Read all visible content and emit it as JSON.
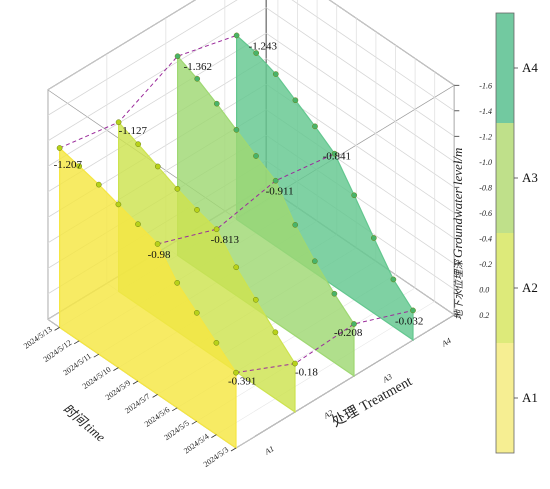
{
  "chart_data": {
    "type": "area",
    "x_axis_label_cn": "时间",
    "x_axis_label_en": "time",
    "y_axis_label_cn": "处理",
    "y_axis_label_en": "Treatment",
    "z_axis_label_cn": "地下水位埋深",
    "z_axis_label_en": "Groundwater level/m",
    "dates": [
      "2024/5/3",
      "2024/5/4",
      "2024/5/5",
      "2024/5/6",
      "2024/5/7",
      "2024/5/9",
      "2024/5/10",
      "2024/5/11",
      "2024/5/12",
      "2024/5/13"
    ],
    "treatments": [
      "A1",
      "A2",
      "A3",
      "A4"
    ],
    "zlim": [
      0.2,
      -1.6
    ],
    "z_ticks": [
      "0.2",
      "0.0",
      "-0.2",
      "-0.4",
      "-0.6",
      "-0.8",
      "-1.0",
      "-1.2",
      "-1.4",
      "-1.6"
    ],
    "z_tick_values": [
      0.2,
      0.0,
      -0.2,
      -0.4,
      -0.6,
      -0.8,
      -1.0,
      -1.2,
      -1.4,
      -1.6
    ],
    "series": [
      {
        "name": "A1",
        "color": "#f5e642",
        "values": [
          -0.391,
          -0.52,
          -0.65,
          -0.78,
          -0.98,
          -1.03,
          -1.08,
          -1.13,
          -1.17,
          -1.207
        ]
      },
      {
        "name": "A2",
        "color": "#cde34f",
        "values": [
          -0.18,
          -0.32,
          -0.47,
          -0.62,
          -0.813,
          -0.86,
          -0.92,
          -0.99,
          -1.06,
          -1.127
        ]
      },
      {
        "name": "A3",
        "color": "#9fd873",
        "values": [
          -0.208,
          -0.34,
          -0.49,
          -0.67,
          -0.911,
          -1.0,
          -1.1,
          -1.2,
          -1.29,
          -1.362
        ]
      },
      {
        "name": "A4",
        "color": "#63c78f",
        "values": [
          -0.032,
          -0.17,
          -0.39,
          -0.62,
          -0.841,
          -0.95,
          -1.05,
          -1.15,
          -1.21,
          -1.243
        ]
      }
    ],
    "annotations": [
      "-1.207",
      "-1.127",
      "-1.362",
      "-1.243",
      "-0.98",
      "-0.813",
      "-0.911",
      "-0.841",
      "-0.391",
      "-0.18",
      "-0.208",
      "-0.032"
    ],
    "colorbar": {
      "labels": [
        "A4",
        "A3",
        "A2",
        "A1"
      ],
      "colors": [
        "#72c9a0",
        "#bfe08a",
        "#ddea7a",
        "#f6ee92"
      ]
    }
  }
}
